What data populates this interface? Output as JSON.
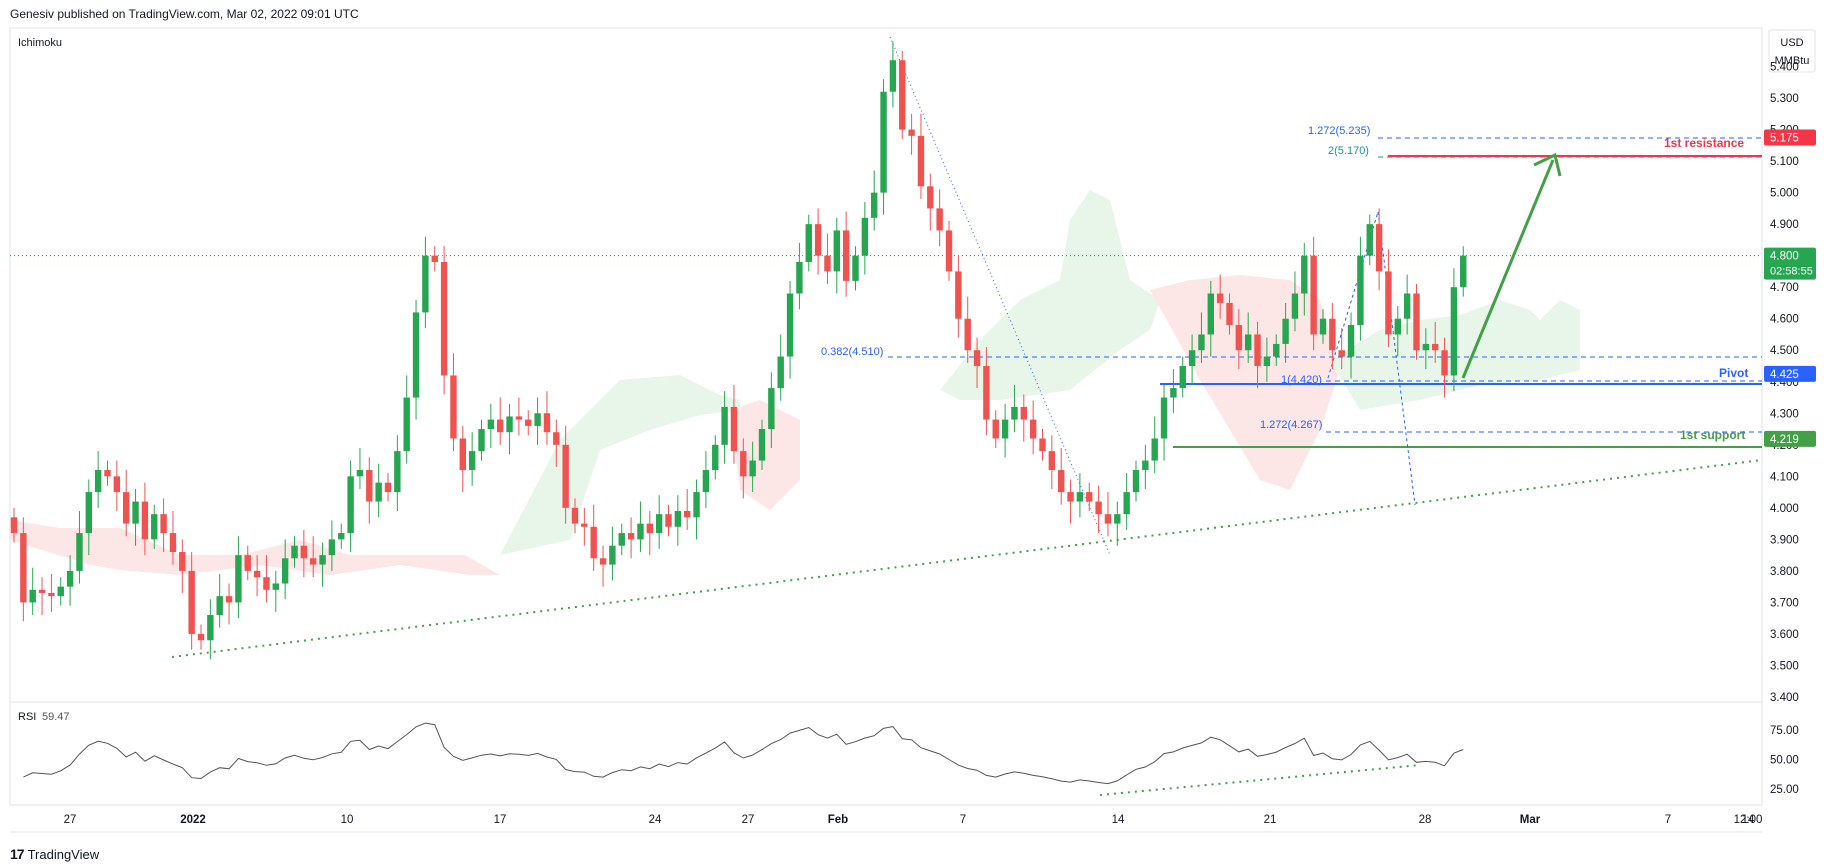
{
  "header": {
    "published": "Genesiv published on TradingView.com, Mar 02, 2022 09:01 UTC"
  },
  "indicator_label": "Ichimoku",
  "currency": {
    "top": "USD",
    "bottom": "MMBtu"
  },
  "footer": {
    "logo": "17",
    "name": "TradingView"
  },
  "colors": {
    "up": "#26a650",
    "down": "#ef5350",
    "blue": "#2962ff",
    "green": "#43a047",
    "red": "#f23645",
    "cloud_green": "#e8f5e9",
    "cloud_red": "#fde6e6"
  },
  "chart_data": {
    "type": "candlestick",
    "ylim": [
      3.4,
      5.5
    ],
    "y_ticks": [
      "5.400",
      "5.300",
      "5.200",
      "5.100",
      "5.000",
      "4.900",
      "4.800",
      "4.700",
      "4.600",
      "4.500",
      "4.400",
      "4.300",
      "4.200",
      "4.100",
      "4.000",
      "3.900",
      "3.800",
      "3.700",
      "3.600",
      "3.500",
      "3.400"
    ],
    "x_ticks": [
      "27",
      "2022",
      "10",
      "17",
      "24",
      "27",
      "Feb",
      "7",
      "14",
      "21",
      "28",
      "Mar",
      "7",
      "14",
      "12:00"
    ],
    "price_badges": [
      {
        "label": "5.175",
        "color": "#f23645"
      },
      {
        "label": "4.800",
        "sub": "02:58:55",
        "color": "#26a650"
      },
      {
        "label": "4.425",
        "color": "#2962ff"
      },
      {
        "label": "4.219",
        "color": "#43a047"
      }
    ],
    "annotations": {
      "resistance_label": "1st resistance",
      "pivot_label": "Pivot",
      "support_label": "1st support",
      "fib_1272_top": "1.272(5.235)",
      "fib_2": "2(5.170)",
      "fib_0382": "0.382(4.510)",
      "fib_1": "1(4.420)",
      "fib_1272_low": "1.272(4.267)"
    },
    "closes": [
      3.92,
      3.7,
      3.74,
      3.73,
      3.72,
      3.75,
      3.8,
      3.92,
      4.05,
      4.12,
      4.1,
      4.05,
      3.95,
      4.02,
      3.9,
      3.98,
      3.92,
      3.86,
      3.8,
      3.6,
      3.58,
      3.66,
      3.72,
      3.7,
      3.85,
      3.8,
      3.78,
      3.74,
      3.76,
      3.84,
      3.88,
      3.84,
      3.82,
      3.85,
      3.9,
      3.92,
      4.1,
      4.12,
      4.02,
      4.08,
      4.05,
      4.18,
      4.35,
      4.62,
      4.8,
      4.78,
      4.42,
      4.22,
      4.12,
      4.18,
      4.25,
      4.28,
      4.24,
      4.29,
      4.28,
      4.26,
      4.3,
      4.24,
      4.2,
      4.0,
      3.95,
      3.94,
      3.84,
      3.82,
      3.88,
      3.92,
      3.9,
      3.95,
      3.92,
      3.98,
      3.94,
      3.99,
      3.97,
      4.05,
      4.12,
      4.2,
      4.32,
      4.18,
      4.1,
      4.15,
      4.25,
      4.38,
      4.48,
      4.68,
      4.78,
      4.9,
      4.8,
      4.75,
      4.88,
      4.72,
      4.8,
      4.92,
      5.0,
      5.32,
      5.42,
      5.2,
      5.18,
      5.02,
      4.95,
      4.88,
      4.75,
      4.6,
      4.5,
      4.45,
      4.28,
      4.22,
      4.28,
      4.32,
      4.28,
      4.22,
      4.18,
      4.12,
      4.05,
      4.02,
      4.05,
      4.02,
      3.98,
      3.95,
      3.98,
      4.05,
      4.12,
      4.15,
      4.22,
      4.35,
      4.38,
      4.45,
      4.5,
      4.55,
      4.68,
      4.65,
      4.58,
      4.5,
      4.55,
      4.45,
      4.48,
      4.52,
      4.6,
      4.68,
      4.8,
      4.55,
      4.6,
      4.5,
      4.48,
      4.58,
      4.8,
      4.9,
      4.75,
      4.55,
      4.6,
      4.68,
      4.5,
      4.52,
      4.5,
      4.42,
      4.7,
      4.8
    ]
  },
  "rsi": {
    "label": "RSI",
    "value": "59.47",
    "ticks": [
      "75.00",
      "50.00",
      "25.00"
    ]
  }
}
